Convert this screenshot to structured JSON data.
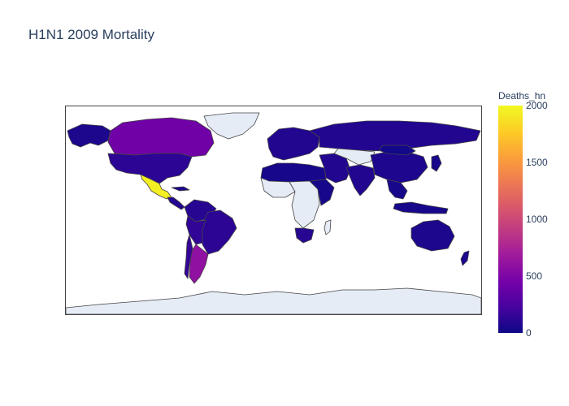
{
  "chart_data": {
    "type": "choropleth",
    "title": "H1N1 2009 Mortality",
    "projection": "equirectangular",
    "missing_data_color": "#e5ecf6",
    "border_color": "#444444",
    "colorscale": "plasma",
    "colorbar": {
      "title": "Deaths_hn",
      "range": [
        0,
        2000
      ],
      "ticks": [
        "0",
        "500",
        "1000",
        "1500",
        "2000"
      ],
      "placement": "right"
    },
    "regions": [
      {
        "name": "Alaska / USA west",
        "deaths": 60
      },
      {
        "name": "Canada",
        "deaths": 430
      },
      {
        "name": "United States",
        "deaths": 120
      },
      {
        "name": "Mexico",
        "deaths": 1950
      },
      {
        "name": "Central America",
        "deaths": 90
      },
      {
        "name": "Cuba",
        "deaths": 60
      },
      {
        "name": "Colombia / Venezuela",
        "deaths": 100
      },
      {
        "name": "Brazil",
        "deaths": 120
      },
      {
        "name": "Peru / Bolivia",
        "deaths": 140
      },
      {
        "name": "Argentina",
        "deaths": 600
      },
      {
        "name": "Chile",
        "deaths": 150
      },
      {
        "name": "Greenland",
        "deaths": null
      },
      {
        "name": "Western Europe",
        "deaths": 80
      },
      {
        "name": "Russia",
        "deaths": 80
      },
      {
        "name": "North Africa",
        "deaths": 40
      },
      {
        "name": "West Africa",
        "deaths": null
      },
      {
        "name": "Central Africa",
        "deaths": null
      },
      {
        "name": "East Africa",
        "deaths": 40
      },
      {
        "name": "South Africa",
        "deaths": 100
      },
      {
        "name": "Madagascar",
        "deaths": null
      },
      {
        "name": "Middle East",
        "deaths": 80
      },
      {
        "name": "Central Asia",
        "deaths": null
      },
      {
        "name": "India",
        "deaths": 80
      },
      {
        "name": "China",
        "deaths": 70
      },
      {
        "name": "Mongolia",
        "deaths": 20
      },
      {
        "name": "Southeast Asia",
        "deaths": 40
      },
      {
        "name": "Japan",
        "deaths": 40
      },
      {
        "name": "Indonesia",
        "deaths": 40
      },
      {
        "name": "Australia",
        "deaths": 60
      },
      {
        "name": "New Zealand",
        "deaths": 60
      },
      {
        "name": "Antarctica",
        "deaths": null
      }
    ]
  }
}
